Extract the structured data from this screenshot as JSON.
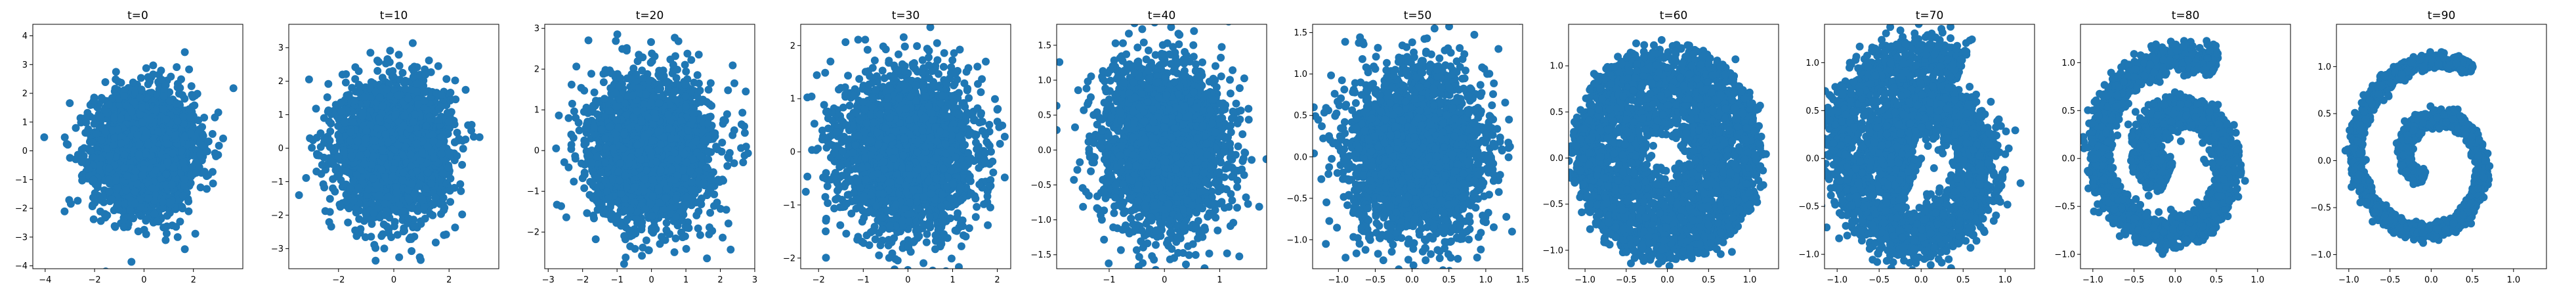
{
  "figure": {
    "marker_color": "#1f77b4",
    "axes_color": "#000000",
    "background": "#ffffff"
  },
  "chart_data": [
    {
      "type": "scatter",
      "title": "t=0",
      "xlim": [
        -4.5,
        4.0
      ],
      "ylim": [
        -4.1,
        4.4
      ],
      "xticks": [
        -4,
        -2,
        0,
        2
      ],
      "xticklabels": [
        "−4",
        "−2",
        "0",
        "2"
      ],
      "yticks": [
        -4,
        -3,
        -2,
        -1,
        0,
        1,
        2,
        3,
        4
      ],
      "yticklabels": [
        "−4",
        "−3",
        "−2",
        "−1",
        "0",
        "1",
        "2",
        "3",
        "4"
      ],
      "distribution": "gaussian",
      "center": [
        0.0,
        0.0
      ],
      "std": [
        1.0,
        1.0
      ],
      "n_points": 3000,
      "grid": false,
      "legend": "none"
    },
    {
      "type": "scatter",
      "title": "t=10",
      "xlim": [
        -3.8,
        3.8
      ],
      "ylim": [
        -3.6,
        3.7
      ],
      "xticks": [
        -2,
        0,
        2
      ],
      "xticklabels": [
        "−2",
        "0",
        "2"
      ],
      "yticks": [
        -3,
        -2,
        -1,
        0,
        1,
        2,
        3
      ],
      "yticklabels": [
        "−3",
        "−2",
        "−1",
        "0",
        "1",
        "2",
        "3"
      ],
      "distribution": "gaussian",
      "center": [
        0.0,
        0.0
      ],
      "std": [
        0.95,
        0.95
      ],
      "n_points": 3000,
      "grid": false,
      "legend": "none"
    },
    {
      "type": "scatter",
      "title": "t=20",
      "xlim": [
        -3.1,
        3.0
      ],
      "ylim": [
        -2.9,
        3.1
      ],
      "xticks": [
        -3,
        -2,
        -1,
        0,
        1,
        2,
        3
      ],
      "xticklabels": [
        "−3",
        "−2",
        "−1",
        "0",
        "1",
        "2",
        "3"
      ],
      "yticks": [
        -2,
        -1,
        0,
        1,
        2,
        3
      ],
      "yticklabels": [
        "−2",
        "−1",
        "0",
        "1",
        "2",
        "3"
      ],
      "distribution": "gaussian",
      "center": [
        0.0,
        0.0
      ],
      "std": [
        0.85,
        0.85
      ],
      "n_points": 3000,
      "grid": false,
      "legend": "none"
    },
    {
      "type": "scatter",
      "title": "t=30",
      "xlim": [
        -2.4,
        2.3
      ],
      "ylim": [
        -2.2,
        2.4
      ],
      "xticks": [
        -2,
        -1,
        0,
        1,
        2
      ],
      "xticklabels": [
        "−2",
        "−1",
        "0",
        "1",
        "2"
      ],
      "yticks": [
        -2,
        -1,
        0,
        1,
        2
      ],
      "yticklabels": [
        "−2",
        "−1",
        "0",
        "1",
        "2"
      ],
      "distribution": "gaussian",
      "center": [
        0.0,
        0.0
      ],
      "std": [
        0.72,
        0.72
      ],
      "n_points": 3000,
      "grid": false,
      "legend": "none"
    },
    {
      "type": "scatter",
      "title": "t=40",
      "xlim": [
        -1.95,
        1.85
      ],
      "ylim": [
        -1.7,
        1.8
      ],
      "xticks": [
        -1,
        0,
        1
      ],
      "xticklabels": [
        "−1",
        "0",
        "1"
      ],
      "yticks": [
        -1.5,
        -1.0,
        -0.5,
        0.0,
        0.5,
        1.0,
        1.5
      ],
      "yticklabels": [
        "−1.5",
        "−1.0",
        "−0.5",
        "0.0",
        "0.5",
        "1.0",
        "1.5"
      ],
      "distribution": "gaussian",
      "center": [
        0.0,
        0.05
      ],
      "std": [
        0.55,
        0.58
      ],
      "n_points": 3000,
      "grid": false,
      "legend": "none"
    },
    {
      "type": "scatter",
      "title": "t=50",
      "xlim": [
        -1.35,
        1.5
      ],
      "ylim": [
        -1.35,
        1.6
      ],
      "xticks": [
        -1.0,
        -0.5,
        0.0,
        0.5,
        1.0,
        1.5
      ],
      "xticklabels": [
        "−1.0",
        "−0.5",
        "0.0",
        "0.5",
        "1.0",
        "1.5"
      ],
      "yticks": [
        -1.0,
        -0.5,
        0.0,
        0.5,
        1.0,
        1.5
      ],
      "yticklabels": [
        "−1.0",
        "−0.5",
        "0.0",
        "0.5",
        "1.0",
        "1.5"
      ],
      "distribution": "gaussian",
      "center": [
        0.05,
        0.05
      ],
      "std": [
        0.45,
        0.5
      ],
      "n_points": 3000,
      "grid": false,
      "legend": "none"
    },
    {
      "type": "scatter",
      "title": "t=60",
      "xlim": [
        -1.2,
        1.35
      ],
      "ylim": [
        -1.2,
        1.45
      ],
      "xticks": [
        -1.0,
        -0.5,
        0.0,
        0.5,
        1.0
      ],
      "xticklabels": [
        "−1.0",
        "−0.5",
        "0.0",
        "0.5",
        "1.0"
      ],
      "yticks": [
        -1.0,
        -0.5,
        0.0,
        0.5,
        1.0
      ],
      "yticklabels": [
        "−1.0",
        "−0.5",
        "0.0",
        "0.5",
        "1.0"
      ],
      "distribution": "ring",
      "center": [
        0.0,
        0.05
      ],
      "radius_range": [
        0.25,
        1.15
      ],
      "n_points": 3000,
      "grid": false,
      "legend": "none"
    },
    {
      "type": "scatter",
      "title": "t=70",
      "xlim": [
        -1.15,
        1.35
      ],
      "ylim": [
        -1.15,
        1.4
      ],
      "xticks": [
        -1.0,
        -0.5,
        0.0,
        0.5,
        1.0
      ],
      "xticklabels": [
        "−1.0",
        "−0.5",
        "0.0",
        "0.5",
        "1.0"
      ],
      "yticks": [
        -1.0,
        -0.5,
        0.0,
        0.5,
        1.0
      ],
      "yticklabels": [
        "−1.0",
        "−0.5",
        "0.0",
        "0.5",
        "1.0"
      ],
      "distribution": "spiral",
      "spiral_r_range": [
        0.35,
        1.1
      ],
      "spiral_thickness": 0.15,
      "n_points": 3000,
      "grid": false,
      "legend": "none"
    },
    {
      "type": "scatter",
      "title": "t=80",
      "xlim": [
        -1.15,
        1.4
      ],
      "ylim": [
        -1.15,
        1.4
      ],
      "xticks": [
        -1.0,
        -0.5,
        0.0,
        0.5,
        1.0
      ],
      "xticklabels": [
        "−1.0",
        "−0.5",
        "0.0",
        "0.5",
        "1.0"
      ],
      "yticks": [
        -1.0,
        -0.5,
        0.0,
        0.5,
        1.0
      ],
      "yticklabels": [
        "−1.0",
        "−0.5",
        "0.0",
        "0.5",
        "1.0"
      ],
      "distribution": "spiral",
      "spiral_r_range": [
        0.25,
        1.1
      ],
      "spiral_thickness": 0.08,
      "n_points": 3000,
      "grid": false,
      "legend": "none"
    },
    {
      "type": "scatter",
      "title": "t=90",
      "xlim": [
        -1.15,
        1.4
      ],
      "ylim": [
        -1.15,
        1.45
      ],
      "xticks": [
        -1.0,
        -0.5,
        0.0,
        0.5,
        1.0
      ],
      "xticklabels": [
        "−1.0",
        "−0.5",
        "0.0",
        "0.5",
        "1.0"
      ],
      "yticks": [
        -1.0,
        -0.5,
        0.0,
        0.5,
        1.0
      ],
      "yticklabels": [
        "−1.0",
        "−0.5",
        "0.0",
        "0.5",
        "1.0"
      ],
      "distribution": "spiral",
      "spiral_r_range": [
        0.2,
        1.1
      ],
      "spiral_thickness": 0.04,
      "n_points": 3000,
      "grid": false,
      "legend": "none"
    }
  ]
}
